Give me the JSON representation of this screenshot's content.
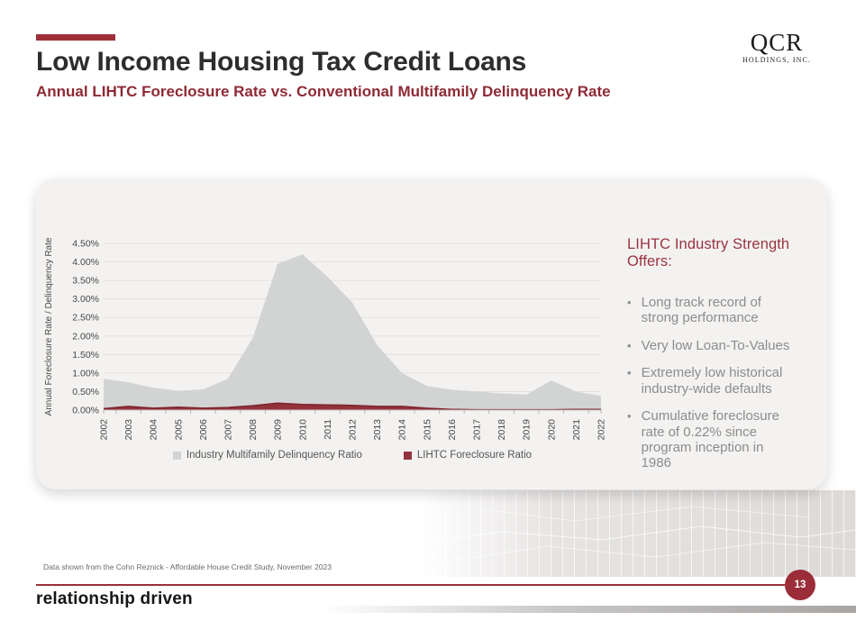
{
  "slide": {
    "title": "Low Income Housing Tax Credit Loans",
    "subtitle": "Annual LIHTC Foreclosure Rate vs. Conventional Multifamily Delinquency Rate",
    "page_number": "13",
    "source_note": "Data shown from the Cohn Reznick - Affordable House Credit Study, November 2023",
    "footer_logo": "relationship driven"
  },
  "brand": {
    "logo_top": "QCR",
    "logo_bottom": "Holdings, Inc."
  },
  "panel": {
    "heading": "LIHTC Industry Strength Offers:",
    "bullets": [
      {
        "text": "Long track record of\nstrong performance"
      },
      {
        "text": "Very low Loan-To-Values"
      },
      {
        "text": "Extremely low historical\nindustry-wide defaults"
      },
      {
        "text": "Cumulative foreclosure\nrate of 0.22% since\nprogram inception in\n1986"
      }
    ]
  },
  "chart_data": {
    "type": "area",
    "categories": [
      "2002",
      "2003",
      "2004",
      "2005",
      "2006",
      "2007",
      "2008",
      "2009",
      "2010",
      "2011",
      "2012",
      "2013",
      "2014",
      "2015",
      "2016",
      "2017",
      "2018",
      "2019",
      "2020",
      "2021",
      "2022"
    ],
    "series": [
      {
        "name": "Industry Multifamily Delinquency Ratio",
        "color": "#d2d3d3",
        "values": [
          0.85,
          0.75,
          0.6,
          0.52,
          0.56,
          0.85,
          1.95,
          3.95,
          4.2,
          3.6,
          2.9,
          1.75,
          1.0,
          0.65,
          0.55,
          0.5,
          0.45,
          0.42,
          0.8,
          0.5,
          0.38
        ]
      },
      {
        "name": "LIHTC Foreclosure Ratio",
        "color": "#94323c",
        "edge_color": "#7e232c",
        "values": [
          0.04,
          0.1,
          0.05,
          0.08,
          0.05,
          0.07,
          0.12,
          0.19,
          0.15,
          0.14,
          0.13,
          0.1,
          0.1,
          0.05,
          0.02,
          0.01,
          0.01,
          0.01,
          0.01,
          0.02,
          0.02
        ]
      }
    ],
    "ylabel": "Annual Foreclosure Rate / Delinquency Rate",
    "xlabel": "",
    "yticks": [
      0,
      0.5,
      1,
      1.5,
      2,
      2.5,
      3,
      3.5,
      4,
      4.5
    ],
    "yticklabels": [
      "0.00%",
      "0.50%",
      "1.00%",
      "1.50%",
      "2.00%",
      "2.50%",
      "3.00%",
      "3.50%",
      "4.00%",
      "4.50%"
    ],
    "ylim": [
      0,
      4.5
    ],
    "grid": true,
    "legend_position": "bottom"
  },
  "colors": {
    "accent_maroon": "#9c2f38",
    "title_dark": "#2d2d2d",
    "subtitle_maroon": "#8e2a35",
    "bullet_gray": "#8c8c8c",
    "gridline": "#e3e1e0",
    "card_bg": "#f3f2f1",
    "axis_text": "#474747"
  }
}
